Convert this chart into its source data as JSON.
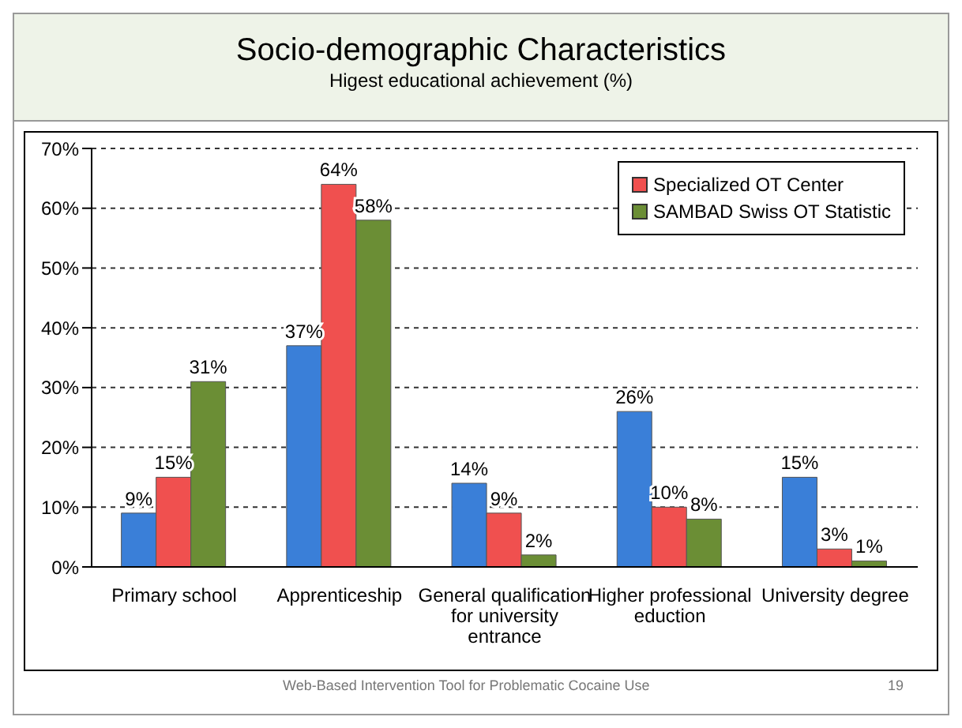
{
  "chart_data": {
    "type": "bar",
    "title": "Socio-demographic Characteristics",
    "subtitle": "Higest educational achievement (%)",
    "categories": [
      "Primary school",
      "Apprenticeship",
      "General qualification for university entrance",
      "Higher professional eduction",
      "University degree"
    ],
    "series": [
      {
        "color": "#3a7fd8",
        "values": [
          9,
          37,
          14,
          26,
          15
        ],
        "value_labels": [
          "9%",
          "37%",
          "14%",
          "26%",
          "15%"
        ]
      },
      {
        "name": "Specialized OT Center",
        "color": "#f0504f",
        "values": [
          15,
          64,
          9,
          10,
          3
        ],
        "value_labels": [
          "15%",
          "64%",
          "9%",
          "10%",
          "3%"
        ]
      },
      {
        "name": "SAMBAD Swiss OT Statistic",
        "color": "#6b8e35",
        "values": [
          31,
          58,
          2,
          8,
          1
        ],
        "value_labels": [
          "31%",
          "58%",
          "2%",
          "8%",
          "1%"
        ]
      }
    ],
    "ylim": [
      0,
      70
    ],
    "yticks": [
      {
        "value": 0,
        "label": "0%"
      },
      {
        "value": 10,
        "label": "10%"
      },
      {
        "value": 20,
        "label": "20%"
      },
      {
        "value": 30,
        "label": "30%"
      },
      {
        "value": 40,
        "label": "40%"
      },
      {
        "value": 50,
        "label": "50%"
      },
      {
        "value": 60,
        "label": "60%"
      },
      {
        "value": 70,
        "label": "70%"
      }
    ],
    "grid": "y",
    "legend": "top right",
    "annotations": [
      "Web-Based Intervention Tool for Problematic Cocaine Use",
      "19"
    ]
  }
}
